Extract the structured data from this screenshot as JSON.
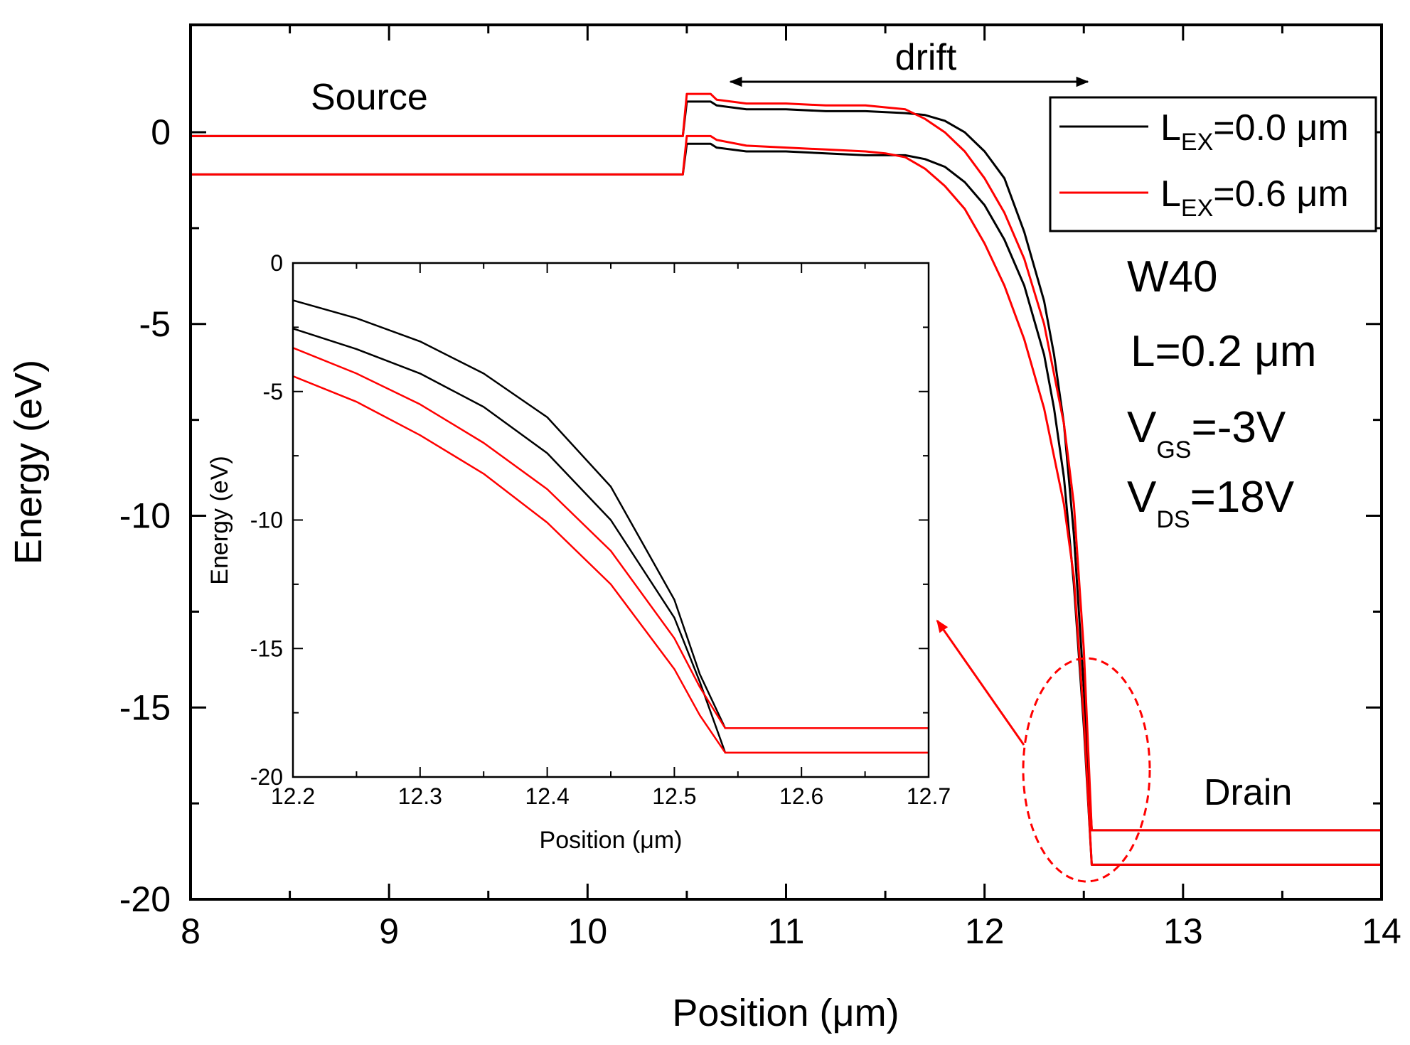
{
  "chart_data": [
    {
      "type": "line",
      "xlabel": "Position (μm)",
      "ylabel": "Energy (eV)",
      "xlim": [
        8,
        14
      ],
      "ylim": [
        -20,
        2.8
      ],
      "xticks": [
        "8",
        "9",
        "10",
        "11",
        "12",
        "13",
        "14"
      ],
      "yticks": [
        "0",
        "-5",
        "-10",
        "-15",
        "-20"
      ],
      "series": [
        {
          "name": "L_EX=0.0 μm (upper band)",
          "color": "#000000",
          "x": [
            8.0,
            10.48,
            10.5,
            10.53,
            10.62,
            10.65,
            10.8,
            11.0,
            11.2,
            11.4,
            11.6,
            11.7,
            11.8,
            11.9,
            12.0,
            12.1,
            12.2,
            12.3,
            12.35,
            12.4,
            12.45,
            12.5,
            12.54,
            14.0
          ],
          "values": [
            -0.1,
            -0.1,
            0.8,
            0.8,
            0.8,
            0.7,
            0.6,
            0.6,
            0.55,
            0.55,
            0.5,
            0.45,
            0.3,
            0.0,
            -0.5,
            -1.2,
            -2.6,
            -4.4,
            -5.8,
            -7.6,
            -10.5,
            -14.5,
            -18.2,
            -18.2
          ]
        },
        {
          "name": "L_EX=0.0 μm (lower band)",
          "color": "#000000",
          "x": [
            8.0,
            10.48,
            10.5,
            10.53,
            10.62,
            10.65,
            10.8,
            11.0,
            11.2,
            11.4,
            11.6,
            11.7,
            11.8,
            11.9,
            12.0,
            12.1,
            12.2,
            12.3,
            12.35,
            12.4,
            12.45,
            12.5,
            12.54,
            14.0
          ],
          "values": [
            -1.1,
            -1.1,
            -0.3,
            -0.3,
            -0.3,
            -0.4,
            -0.5,
            -0.5,
            -0.55,
            -0.6,
            -0.6,
            -0.7,
            -0.9,
            -1.3,
            -1.9,
            -2.8,
            -4.0,
            -5.8,
            -7.2,
            -9.0,
            -11.8,
            -15.5,
            -19.1,
            -19.1
          ]
        },
        {
          "name": "L_EX=0.6 μm (upper band)",
          "color": "#ff0000",
          "x": [
            8.0,
            10.48,
            10.5,
            10.53,
            10.62,
            10.65,
            10.8,
            11.0,
            11.2,
            11.4,
            11.5,
            11.6,
            11.7,
            11.8,
            11.9,
            12.0,
            12.1,
            12.2,
            12.3,
            12.4,
            12.45,
            12.5,
            12.54,
            14.0
          ],
          "values": [
            -0.1,
            -0.1,
            1.0,
            1.0,
            1.0,
            0.85,
            0.75,
            0.75,
            0.7,
            0.7,
            0.65,
            0.6,
            0.35,
            0.0,
            -0.5,
            -1.2,
            -2.1,
            -3.3,
            -5.0,
            -7.6,
            -9.7,
            -13.5,
            -18.2,
            -18.2
          ]
        },
        {
          "name": "L_EX=0.6 μm (lower band)",
          "color": "#ff0000",
          "x": [
            8.0,
            10.48,
            10.5,
            10.53,
            10.62,
            10.65,
            10.8,
            11.0,
            11.2,
            11.4,
            11.5,
            11.6,
            11.7,
            11.8,
            11.9,
            12.0,
            12.1,
            12.2,
            12.3,
            12.4,
            12.45,
            12.5,
            12.54,
            14.0
          ],
          "values": [
            -1.1,
            -1.1,
            -0.1,
            -0.1,
            -0.1,
            -0.2,
            -0.35,
            -0.4,
            -0.45,
            -0.5,
            -0.55,
            -0.65,
            -0.95,
            -1.4,
            -2.0,
            -2.9,
            -4.0,
            -5.4,
            -7.2,
            -9.7,
            -11.6,
            -15.3,
            -19.1,
            -19.1
          ]
        }
      ],
      "legend": {
        "position": "top-right",
        "entries": [
          {
            "main": "L",
            "sub": "EX",
            "rest": "=0.0 μm",
            "color": "#000000"
          },
          {
            "main": "L",
            "sub": "EX",
            "rest": "=0.6 μm",
            "color": "#ff0000"
          }
        ]
      },
      "annotations": {
        "source": "Source",
        "drain": "Drain",
        "drift": "drift",
        "drift_range": [
          10.72,
          12.52
        ],
        "conditions": [
          {
            "main": "W40",
            "sub": "",
            "rest": ""
          },
          {
            "main": "L=0.2 μm",
            "sub": "",
            "rest": ""
          },
          {
            "main": "V",
            "sub": "GS",
            "rest": "=-3V"
          },
          {
            "main": "V",
            "sub": "DS",
            "rest": "=18V"
          }
        ]
      }
    },
    {
      "type": "line",
      "role": "inset",
      "xlabel": "Position (μm)",
      "ylabel": "Energy (eV)",
      "xlim": [
        12.2,
        12.7
      ],
      "ylim": [
        -20,
        0
      ],
      "xticks": [
        "12.2",
        "12.3",
        "12.4",
        "12.5",
        "12.6",
        "12.7"
      ],
      "yticks": [
        "0",
        "-5",
        "-10",
        "-15",
        "-20"
      ],
      "series": [
        {
          "name": "L_EX=0.0 μm (upper band)",
          "color": "#000000",
          "x": [
            12.2,
            12.25,
            12.3,
            12.35,
            12.4,
            12.45,
            12.5,
            12.52,
            12.54,
            12.7
          ],
          "values": [
            -1.45,
            -2.15,
            -3.05,
            -4.3,
            -6.0,
            -8.7,
            -13.1,
            -16.0,
            -18.1,
            -18.1
          ]
        },
        {
          "name": "L_EX=0.0 μm (lower band)",
          "color": "#000000",
          "x": [
            12.2,
            12.25,
            12.3,
            12.35,
            12.4,
            12.45,
            12.5,
            12.52,
            12.54,
            12.7
          ],
          "values": [
            -2.55,
            -3.35,
            -4.3,
            -5.6,
            -7.4,
            -10.0,
            -13.8,
            -16.3,
            -19.05,
            -19.05
          ]
        },
        {
          "name": "L_EX=0.6 μm (upper band)",
          "color": "#ff0000",
          "x": [
            12.2,
            12.25,
            12.3,
            12.35,
            12.4,
            12.45,
            12.5,
            12.52,
            12.54,
            12.7
          ],
          "values": [
            -3.3,
            -4.3,
            -5.5,
            -7.0,
            -8.8,
            -11.2,
            -14.6,
            -16.5,
            -18.1,
            -18.1
          ]
        },
        {
          "name": "L_EX=0.6 μm (lower band)",
          "color": "#ff0000",
          "x": [
            12.2,
            12.25,
            12.3,
            12.35,
            12.4,
            12.45,
            12.5,
            12.52,
            12.54,
            12.7
          ],
          "values": [
            -4.4,
            -5.4,
            -6.7,
            -8.2,
            -10.1,
            -12.5,
            -15.8,
            -17.6,
            -19.05,
            -19.05
          ]
        }
      ]
    }
  ]
}
